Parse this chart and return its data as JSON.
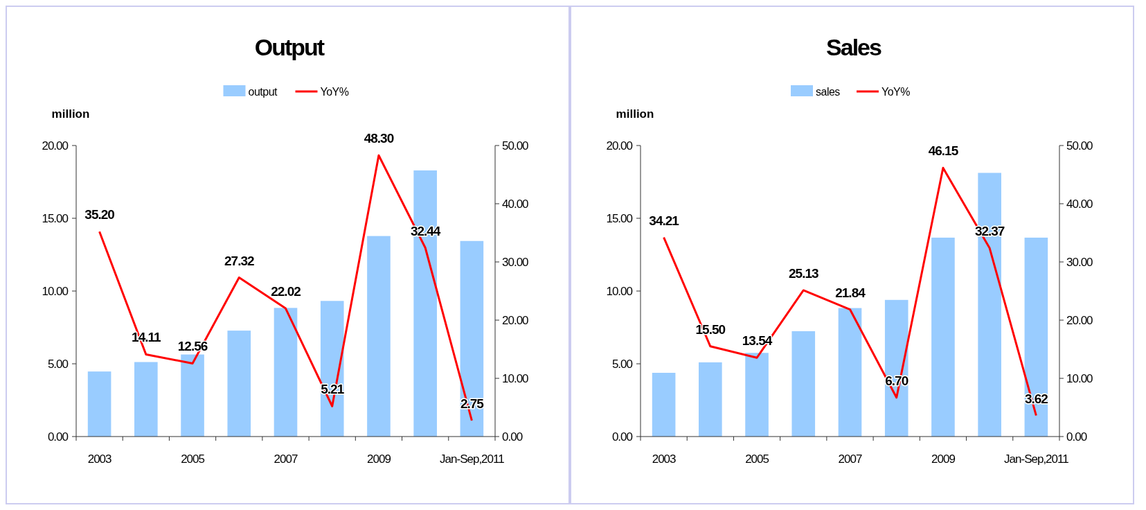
{
  "chart_data": [
    {
      "type": "bar",
      "title": "Output",
      "ylabel": "million",
      "categories": [
        "2003",
        null,
        "2005",
        null,
        "2007",
        null,
        "2009",
        null,
        "Jan-Sep,2011"
      ],
      "legend": "top",
      "grid": false,
      "ylim": [
        0,
        20
      ],
      "yticks": [
        {
          "value": 0,
          "label": "0.00"
        },
        {
          "value": 5,
          "label": "5.00"
        },
        {
          "value": 10,
          "label": "10.00"
        },
        {
          "value": 15,
          "label": "15.00"
        },
        {
          "value": 20,
          "label": "20.00"
        }
      ],
      "y2lim": [
        0,
        50
      ],
      "y2ticks": [
        {
          "value": 0,
          "label": "0.00"
        },
        {
          "value": 10,
          "label": "10.00"
        },
        {
          "value": 20,
          "label": "20.00"
        },
        {
          "value": 30,
          "label": "30.00"
        },
        {
          "value": 40,
          "label": "40.00"
        },
        {
          "value": 50,
          "label": "50.00"
        }
      ],
      "series": [
        {
          "name": "output",
          "color": "#99ccff",
          "values": [
            4.47,
            5.12,
            5.64,
            7.28,
            8.84,
            9.32,
            13.78,
            18.29,
            13.44
          ]
        },
        {
          "name": "YoY%",
          "type": "line",
          "axis": "y2",
          "color": "#ff0000",
          "values": [
            35.2,
            14.11,
            12.56,
            27.32,
            22.02,
            5.21,
            48.3,
            32.44,
            2.75
          ],
          "value_labels": [
            "35.20",
            "14.11",
            "12.56",
            "27.32",
            "22.02",
            "5.21",
            "48.30",
            "32.44",
            "2.75"
          ]
        }
      ]
    },
    {
      "type": "bar",
      "title": "Sales",
      "ylabel": "million",
      "categories": [
        "2003",
        null,
        "2005",
        null,
        "2007",
        null,
        "2009",
        null,
        "Jan-Sep,2011"
      ],
      "legend": "top",
      "grid": false,
      "ylim": [
        0,
        20
      ],
      "yticks": [
        {
          "value": 0,
          "label": "0.00"
        },
        {
          "value": 5,
          "label": "5.00"
        },
        {
          "value": 10,
          "label": "10.00"
        },
        {
          "value": 15,
          "label": "15.00"
        },
        {
          "value": 20,
          "label": "20.00"
        }
      ],
      "y2lim": [
        0,
        50
      ],
      "y2ticks": [
        {
          "value": 0,
          "label": "0.00"
        },
        {
          "value": 10,
          "label": "10.00"
        },
        {
          "value": 20,
          "label": "20.00"
        },
        {
          "value": 30,
          "label": "30.00"
        },
        {
          "value": 40,
          "label": "40.00"
        },
        {
          "value": 50,
          "label": "50.00"
        }
      ],
      "series": [
        {
          "name": "sales",
          "color": "#99ccff",
          "values": [
            4.38,
            5.1,
            5.75,
            7.24,
            8.83,
            9.39,
            13.67,
            18.12,
            13.67
          ]
        },
        {
          "name": "YoY%",
          "type": "line",
          "axis": "y2",
          "color": "#ff0000",
          "values": [
            34.21,
            15.5,
            13.54,
            25.13,
            21.84,
            6.7,
            46.15,
            32.37,
            3.62
          ],
          "value_labels": [
            "34.21",
            "15.50",
            "13.54",
            "25.13",
            "21.84",
            "6.70",
            "46.15",
            "32.37",
            "3.62"
          ]
        }
      ]
    }
  ]
}
